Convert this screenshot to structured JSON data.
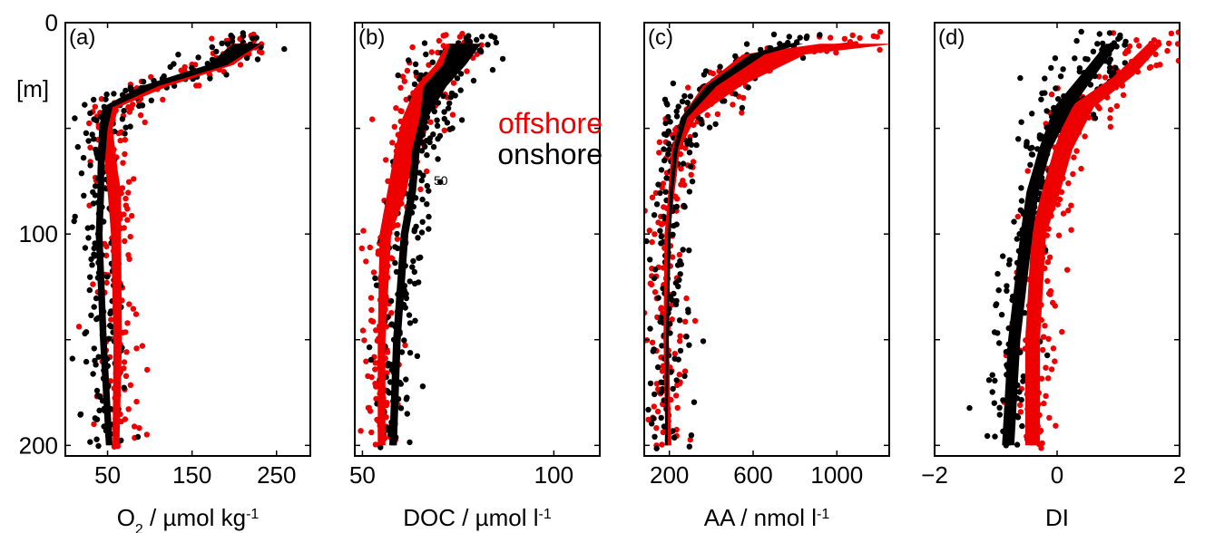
{
  "chart_data": [
    {
      "type": "scatter",
      "panel_label": "(a)",
      "xlabel": "O2 / µmol kg-1",
      "xlabel_parts": {
        "main": "O",
        "sub": "2",
        "rest": " / µmol kg",
        "sup": "-1"
      },
      "ylabel": "[m]",
      "xlim": [
        0,
        290
      ],
      "ylim": [
        0,
        205
      ],
      "y_reversed": true,
      "x_ticks": [
        50,
        150,
        250
      ],
      "x_tick_labels": [
        "50",
        "150",
        "250"
      ],
      "y_ticks": [
        0,
        50,
        100,
        150,
        200
      ],
      "y_tick_labels": [
        "0",
        "",
        "100",
        "",
        "200"
      ],
      "series": [
        {
          "group": "offshore",
          "color": "#ee0000",
          "profile": [
            [
              215,
              10
            ],
            [
              185,
              20
            ],
            [
              110,
              30
            ],
            [
              55,
              40
            ],
            [
              50,
              50
            ],
            [
              55,
              70
            ],
            [
              58,
              80
            ],
            [
              60,
              100
            ],
            [
              62,
              150
            ],
            [
              60,
              200
            ]
          ],
          "spread": [
            [
              18,
              10
            ],
            [
              14,
              20
            ],
            [
              12,
              30
            ],
            [
              8,
              40
            ],
            [
              6,
              50
            ],
            [
              7,
              70
            ],
            [
              8,
              80
            ],
            [
              6,
              100
            ],
            [
              5,
              150
            ],
            [
              4,
              200
            ]
          ],
          "line_width": 5
        },
        {
          "group": "onshore",
          "color": "#000000",
          "profile": [
            [
              215,
              10
            ],
            [
              180,
              20
            ],
            [
              100,
              30
            ],
            [
              50,
              40
            ],
            [
              45,
              50
            ],
            [
              42,
              70
            ],
            [
              42,
              80
            ],
            [
              40,
              100
            ],
            [
              45,
              150
            ],
            [
              52,
              200
            ]
          ],
          "spread": [
            [
              16,
              10
            ],
            [
              12,
              20
            ],
            [
              10,
              30
            ],
            [
              6,
              40
            ],
            [
              5,
              50
            ],
            [
              4,
              70
            ],
            [
              4,
              80
            ],
            [
              4,
              100
            ],
            [
              4,
              150
            ],
            [
              4,
              200
            ]
          ],
          "line_width": 2
        }
      ]
    },
    {
      "type": "scatter",
      "panel_label": "(b)",
      "xlabel": "DOC / µmol l-1",
      "xlabel_parts": {
        "main": "DOC / µmol l",
        "sup": "-1"
      },
      "xlim": [
        48,
        112
      ],
      "ylim": [
        0,
        205
      ],
      "y_reversed": true,
      "x_ticks": [
        50,
        100
      ],
      "x_tick_labels": [
        "50",
        "100"
      ],
      "y_ticks": [
        0,
        50,
        100,
        150,
        200
      ],
      "y_tick_labels": [
        "",
        "",
        "",
        "",
        ""
      ],
      "annotation": "50",
      "legend": [
        {
          "label": "offshore",
          "color": "#ee0000"
        },
        {
          "label": "onshore",
          "color": "#000000"
        }
      ],
      "series": [
        {
          "group": "offshore",
          "color": "#ee0000",
          "profile": [
            [
              76,
              10
            ],
            [
              72,
              20
            ],
            [
              67,
              30
            ],
            [
              63,
              45
            ],
            [
              61,
              60
            ],
            [
              59,
              80
            ],
            [
              56,
              100
            ],
            [
              55,
              150
            ],
            [
              55,
              200
            ]
          ],
          "spread": [
            [
              4,
              10
            ],
            [
              3,
              20
            ],
            [
              3,
              30
            ],
            [
              2.5,
              45
            ],
            [
              2.5,
              60
            ],
            [
              2.5,
              80
            ],
            [
              1.5,
              100
            ],
            [
              1,
              150
            ],
            [
              1,
              200
            ]
          ],
          "line_width": 5
        },
        {
          "group": "onshore",
          "color": "#000000",
          "profile": [
            [
              77,
              10
            ],
            [
              74,
              20
            ],
            [
              69,
              30
            ],
            [
              66,
              45
            ],
            [
              64,
              60
            ],
            [
              63,
              80
            ],
            [
              61,
              100
            ],
            [
              59,
              150
            ],
            [
              58,
              200
            ]
          ],
          "spread": [
            [
              4,
              10
            ],
            [
              3,
              20
            ],
            [
              3,
              30
            ],
            [
              1,
              45
            ],
            [
              1,
              60
            ],
            [
              1,
              80
            ],
            [
              1,
              100
            ],
            [
              1,
              150
            ],
            [
              1,
              200
            ]
          ],
          "line_width": 5
        }
      ]
    },
    {
      "type": "scatter",
      "panel_label": "(c)",
      "xlabel": "AA / nmol l-1",
      "xlabel_parts": {
        "main": "AA / nmol l",
        "sup": "-1"
      },
      "xlim": [
        80,
        1250
      ],
      "ylim": [
        0,
        205
      ],
      "y_reversed": true,
      "x_ticks": [
        200,
        600,
        1000
      ],
      "x_tick_labels": [
        "200",
        "600",
        "1000"
      ],
      "y_ticks": [
        0,
        50,
        100,
        150,
        200
      ],
      "y_tick_labels": [
        "",
        "",
        "",
        "",
        ""
      ],
      "series": [
        {
          "group": "offshore",
          "color": "#ee0000",
          "profile": [
            [
              1100,
              10
            ],
            [
              700,
              15
            ],
            [
              450,
              30
            ],
            [
              290,
              45
            ],
            [
              230,
              60
            ],
            [
              210,
              80
            ],
            [
              190,
              100
            ],
            [
              185,
              150
            ],
            [
              195,
              200
            ]
          ],
          "spread": [
            [
              180,
              10
            ],
            [
              150,
              15
            ],
            [
              90,
              30
            ],
            [
              35,
              45
            ],
            [
              20,
              60
            ],
            [
              15,
              80
            ],
            [
              10,
              100
            ],
            [
              8,
              150
            ],
            [
              15,
              200
            ]
          ],
          "line_width": 6
        },
        {
          "group": "onshore",
          "color": "#000000",
          "profile": [
            [
              800,
              10
            ],
            [
              620,
              15
            ],
            [
              400,
              30
            ],
            [
              270,
              45
            ],
            [
              230,
              60
            ],
            [
              210,
              80
            ],
            [
              200,
              100
            ],
            [
              190,
              150
            ],
            [
              185,
              200
            ]
          ],
          "spread": [
            [
              40,
              10
            ],
            [
              35,
              15
            ],
            [
              25,
              30
            ],
            [
              15,
              45
            ],
            [
              10,
              60
            ],
            [
              8,
              80
            ],
            [
              6,
              100
            ],
            [
              5,
              150
            ],
            [
              4,
              200
            ]
          ],
          "line_width": 3
        }
      ]
    },
    {
      "type": "scatter",
      "panel_label": "(d)",
      "xlabel": "DI",
      "xlim": [
        -2,
        2
      ],
      "ylim": [
        0,
        205
      ],
      "y_reversed": true,
      "x_ticks": [
        -2,
        0,
        2
      ],
      "x_tick_labels": [
        "−2",
        "0",
        "2"
      ],
      "y_ticks": [
        0,
        50,
        100,
        150,
        200
      ],
      "y_tick_labels": [
        "",
        "",
        "",
        "",
        ""
      ],
      "series": [
        {
          "group": "offshore",
          "color": "#ee0000",
          "profile": [
            [
              1.6,
              10
            ],
            [
              1.1,
              25
            ],
            [
              0.4,
              40
            ],
            [
              0.1,
              60
            ],
            [
              -0.1,
              80
            ],
            [
              -0.3,
              100
            ],
            [
              -0.4,
              150
            ],
            [
              -0.4,
              200
            ]
          ],
          "spread": [
            [
              0.12,
              10
            ],
            [
              0.15,
              25
            ],
            [
              0.2,
              40
            ],
            [
              0.15,
              60
            ],
            [
              0.15,
              80
            ],
            [
              0.12,
              100
            ],
            [
              0.12,
              150
            ],
            [
              0.12,
              200
            ]
          ],
          "line_width": 5
        },
        {
          "group": "onshore",
          "color": "#000000",
          "profile": [
            [
              0.9,
              10
            ],
            [
              0.5,
              25
            ],
            [
              0.1,
              40
            ],
            [
              -0.2,
              60
            ],
            [
              -0.4,
              80
            ],
            [
              -0.5,
              100
            ],
            [
              -0.7,
              150
            ],
            [
              -0.8,
              200
            ]
          ],
          "spread": [
            [
              0.1,
              10
            ],
            [
              0.12,
              25
            ],
            [
              0.15,
              40
            ],
            [
              0.1,
              60
            ],
            [
              0.1,
              80
            ],
            [
              0.1,
              100
            ],
            [
              0.1,
              150
            ],
            [
              0.1,
              200
            ]
          ],
          "line_width": 5
        }
      ]
    }
  ]
}
